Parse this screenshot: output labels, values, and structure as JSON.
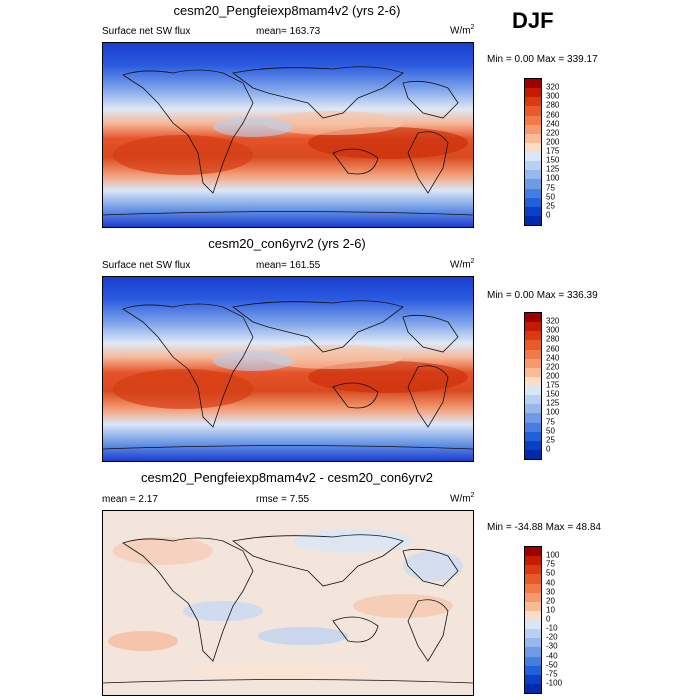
{
  "season": "DJF",
  "panels": [
    {
      "title": "cesm20_Pengfeiexp8mam4v2 (yrs 2-6)",
      "left_label": "Surface net SW flux",
      "center_label": "mean=  163.73",
      "units": "W/m",
      "units_sup": "2",
      "minmax": "Min =   0.00 Max = 339.17",
      "ticks": [
        "320",
        "300",
        "280",
        "260",
        "240",
        "220",
        "200",
        "175",
        "150",
        "125",
        "100",
        "75",
        "50",
        "25",
        "0"
      ],
      "colors": [
        "#9e0000",
        "#c41a00",
        "#d93a10",
        "#e85a2a",
        "#f07a48",
        "#f59a6c",
        "#f8bb96",
        "#fcdcc4",
        "#d8e6f8",
        "#b8d0f2",
        "#96b8ec",
        "#6e9ae6",
        "#467ee0",
        "#2060d8",
        "#0a40c8",
        "#002aa8"
      ]
    },
    {
      "title": "cesm20_con6yrv2 (yrs 2-6)",
      "left_label": "Surface net SW flux",
      "center_label": "mean=  161.55",
      "units": "W/m",
      "units_sup": "2",
      "minmax": "Min =   0.00 Max = 336.39",
      "ticks": [
        "320",
        "300",
        "280",
        "260",
        "240",
        "220",
        "200",
        "175",
        "150",
        "125",
        "100",
        "75",
        "50",
        "25",
        "0"
      ],
      "colors": [
        "#9e0000",
        "#c41a00",
        "#d93a10",
        "#e85a2a",
        "#f07a48",
        "#f59a6c",
        "#f8bb96",
        "#fcdcc4",
        "#d8e6f8",
        "#b8d0f2",
        "#96b8ec",
        "#6e9ae6",
        "#467ee0",
        "#2060d8",
        "#0a40c8",
        "#002aa8"
      ]
    },
    {
      "title": "cesm20_Pengfeiexp8mam4v2 - cesm20_con6yrv2",
      "left_label": "mean =   2.17",
      "center_label": "rmse =   7.55",
      "units": "W/m",
      "units_sup": "2",
      "minmax": "Min = -34.88 Max =  48.84",
      "ticks": [
        "100",
        "75",
        "50",
        "40",
        "30",
        "20",
        "10",
        "0",
        "-10",
        "-20",
        "-30",
        "-40",
        "-50",
        "-75",
        "-100"
      ],
      "colors": [
        "#9e0000",
        "#c41a00",
        "#d93a10",
        "#e85a2a",
        "#f07a48",
        "#f59a6c",
        "#f8bb96",
        "#fcdcc4",
        "#d8e6f8",
        "#b8d0f2",
        "#96b8ec",
        "#6e9ae6",
        "#467ee0",
        "#2060d8",
        "#0a40c8",
        "#002aa8"
      ]
    }
  ]
}
